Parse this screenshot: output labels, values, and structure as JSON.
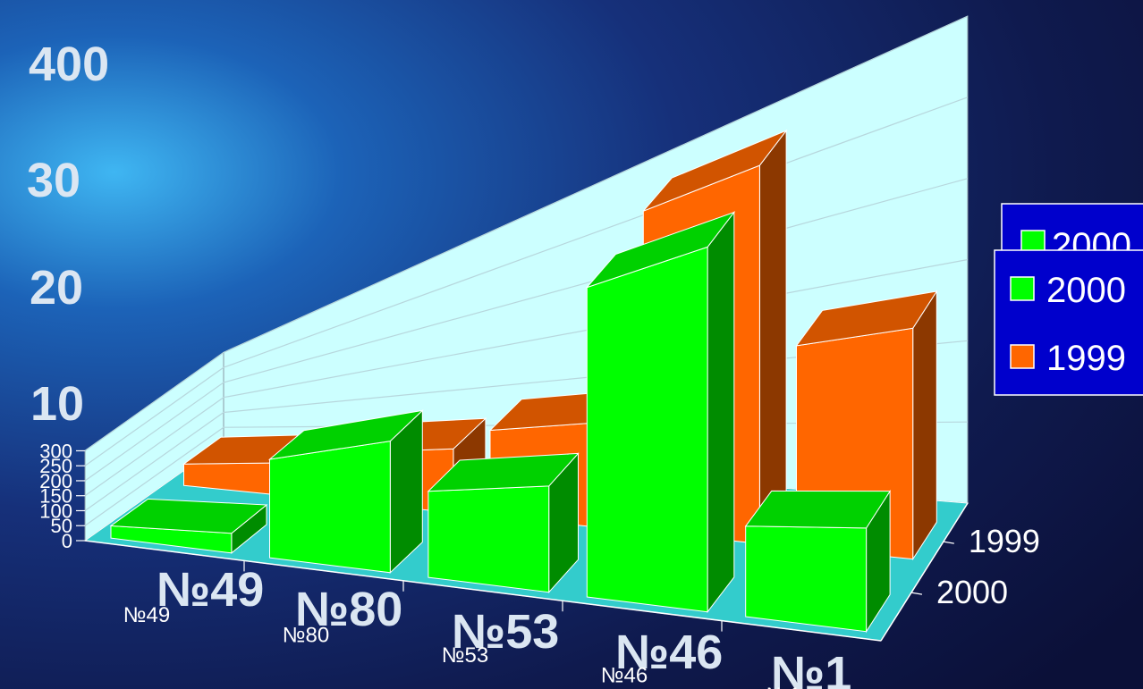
{
  "colors": {
    "series_2000": "#00ff00",
    "series_1999": "#ff6600",
    "back_wall": "#ccffff",
    "floor": "#33cccc",
    "legend_bg": "#0000cc",
    "tick_text": "#ffffff"
  },
  "ghost": {
    "y_ticks": [
      "400",
      "30",
      "20",
      "10"
    ],
    "x_labels": [
      "№49",
      "№80",
      "№53",
      "№46",
      "№1"
    ],
    "legend_label": "2000"
  },
  "chart_data": {
    "type": "bar",
    "categories": [
      "№49",
      "№80",
      "№53",
      "№46",
      "№1"
    ],
    "series": [
      {
        "name": "2000",
        "values": [
          37,
          165,
          100,
          275,
          65
        ]
      },
      {
        "name": "1999",
        "values": [
          65,
          80,
          100,
          285,
          145
        ]
      }
    ],
    "ylim": [
      0,
      300
    ],
    "yticks": [
      "0",
      "50",
      "100",
      "150",
      "200",
      "250",
      "300"
    ],
    "depth_labels": [
      "1999",
      "2000"
    ],
    "legend": {
      "position": "right",
      "entries": [
        "2000",
        "1999"
      ]
    },
    "grid": true
  }
}
